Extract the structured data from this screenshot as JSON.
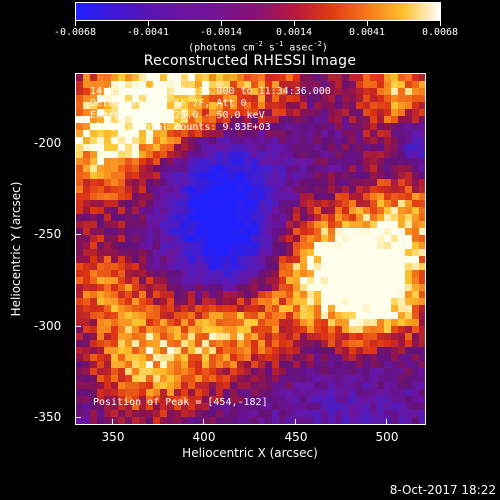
{
  "colorbar": {
    "tick_labels": [
      "-0.0068",
      "-0.0041",
      "-0.0014",
      "0.0014",
      "0.0041",
      "0.0068"
    ],
    "units_main": "(photons cm",
    "units_exp1": "-2",
    "units_mid": " s",
    "units_exp2": "-1",
    "units_mid2": " asec",
    "units_exp3": "-2",
    "units_end": ")",
    "colors": [
      "#1f1fff",
      "#5b14b3",
      "#74148f",
      "#b7183e",
      "#f7771a",
      "#ffffff"
    ]
  },
  "plot": {
    "title": "Reconstructed RHESSI Image",
    "info_lines": [
      "14-Nov-2015 11:24:36.000 to 11:34:36.000",
      "Detectors: 1F 5F 7F, Att 0",
      "Energy Range: 25.0 - 50.0 keV",
      "Clean  : Total counts: 9.83E+03"
    ],
    "peak_text": "Position of Peak = [454,-182]"
  },
  "x_axis": {
    "title": "Heliocentric X (arcsec)",
    "tick_labels": [
      "350",
      "400",
      "450",
      "500"
    ]
  },
  "y_axis": {
    "title": "Heliocentric Y (arcsec)",
    "tick_labels": [
      "-200",
      "-250",
      "-300",
      "-350"
    ]
  },
  "footer": {
    "timestamp": "8-Oct-2017 18:22"
  }
}
